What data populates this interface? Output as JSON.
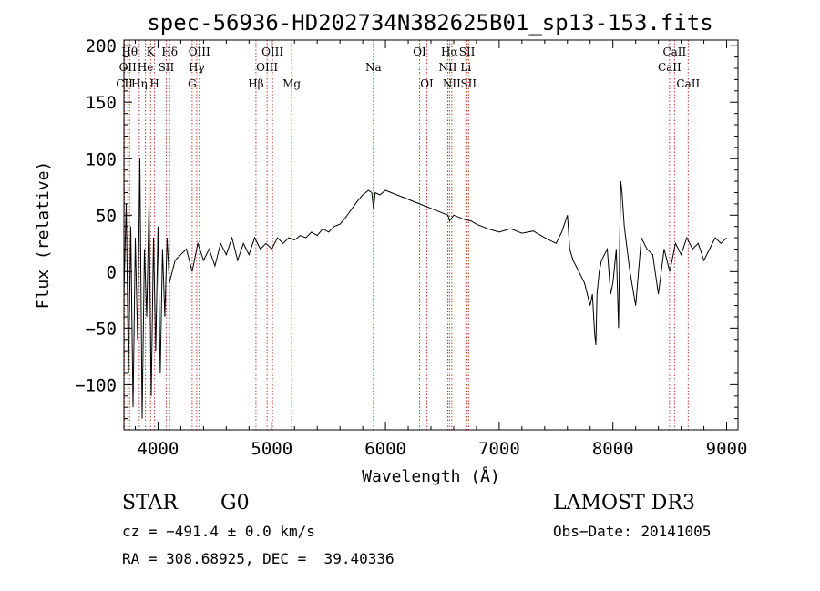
{
  "chart_data": {
    "type": "line",
    "title": "spec-56936-HD202734N382625B01_sp13-153.fits",
    "xlabel": "Wavelength (Å)",
    "ylabel": "Flux (relative)",
    "xlim": [
      3700,
      9100
    ],
    "ylim": [
      -140,
      205
    ],
    "xticks": [
      4000,
      5000,
      6000,
      7000,
      8000,
      9000
    ],
    "yticks": [
      -100,
      -50,
      0,
      50,
      100,
      150,
      200
    ],
    "ytick_labels": [
      "−100",
      "−50",
      "0",
      "50",
      "100",
      "150",
      "200"
    ],
    "series": [
      {
        "name": "flux",
        "x": [
          3700,
          3720,
          3740,
          3760,
          3780,
          3800,
          3820,
          3840,
          3860,
          3880,
          3900,
          3920,
          3940,
          3960,
          3980,
          4000,
          4020,
          4040,
          4060,
          4080,
          4100,
          4150,
          4200,
          4250,
          4300,
          4350,
          4400,
          4450,
          4500,
          4550,
          4600,
          4650,
          4700,
          4750,
          4800,
          4850,
          4900,
          4950,
          5000,
          5050,
          5100,
          5150,
          5200,
          5250,
          5300,
          5350,
          5400,
          5450,
          5500,
          5550,
          5600,
          5650,
          5700,
          5750,
          5800,
          5850,
          5880,
          5895,
          5910,
          5950,
          6000,
          6050,
          6100,
          6150,
          6200,
          6250,
          6300,
          6350,
          6400,
          6450,
          6500,
          6550,
          6563,
          6600,
          6650,
          6700,
          6750,
          6800,
          6900,
          7000,
          7100,
          7200,
          7300,
          7400,
          7500,
          7550,
          7600,
          7620,
          7650,
          7700,
          7750,
          7800,
          7820,
          7840,
          7850,
          7860,
          7880,
          7900,
          7950,
          7980,
          8000,
          8030,
          8050,
          8060,
          8070,
          8080,
          8100,
          8150,
          8200,
          8250,
          8300,
          8350,
          8400,
          8450,
          8500,
          8550,
          8600,
          8650,
          8700,
          8750,
          8800,
          8850,
          8900,
          8950,
          9000
        ],
        "y": [
          -20,
          60,
          -90,
          40,
          -120,
          30,
          -60,
          100,
          -130,
          20,
          -40,
          60,
          -110,
          30,
          -70,
          40,
          -90,
          20,
          -40,
          30,
          -10,
          10,
          15,
          20,
          0,
          25,
          10,
          20,
          5,
          25,
          15,
          30,
          10,
          25,
          15,
          30,
          20,
          25,
          20,
          30,
          25,
          30,
          28,
          32,
          30,
          35,
          32,
          38,
          35,
          40,
          42,
          48,
          55,
          62,
          68,
          72,
          70,
          55,
          70,
          68,
          72,
          70,
          68,
          66,
          64,
          62,
          60,
          58,
          56,
          54,
          52,
          50,
          45,
          50,
          48,
          46,
          45,
          42,
          38,
          35,
          38,
          34,
          36,
          30,
          25,
          35,
          50,
          20,
          10,
          0,
          -10,
          -30,
          -20,
          -55,
          -65,
          -20,
          0,
          10,
          20,
          -20,
          -10,
          20,
          -50,
          30,
          80,
          70,
          40,
          0,
          -30,
          30,
          20,
          15,
          -20,
          20,
          0,
          25,
          15,
          30,
          20,
          25,
          10,
          20,
          30,
          25,
          30
        ]
      }
    ],
    "spectral_lines": [
      {
        "w": 3750,
        "label": "Hθ",
        "row": 1
      },
      {
        "w": 3734,
        "label": "OII",
        "row": 2
      },
      {
        "w": 3705,
        "label": "CII",
        "row": 3
      },
      {
        "w": 3835,
        "label": "Hη",
        "row": 3
      },
      {
        "w": 3889,
        "label": "He",
        "row": 2
      },
      {
        "w": 3934,
        "label": "K",
        "row": 1
      },
      {
        "w": 3969,
        "label": "H",
        "row": 3
      },
      {
        "w": 4072,
        "label": "SII",
        "row": 2
      },
      {
        "w": 4102,
        "label": "Hδ",
        "row": 1
      },
      {
        "w": 4300,
        "label": "G",
        "row": 3
      },
      {
        "w": 4340,
        "label": "Hγ",
        "row": 2
      },
      {
        "w": 4363,
        "label": "OIII",
        "row": 1
      },
      {
        "w": 4861,
        "label": "Hβ",
        "row": 3
      },
      {
        "w": 4959,
        "label": "OIII",
        "row": 2
      },
      {
        "w": 5007,
        "label": "OIII",
        "row": 1
      },
      {
        "w": 5175,
        "label": "Mg",
        "row": 3
      },
      {
        "w": 5894,
        "label": "Na",
        "row": 2
      },
      {
        "w": 6300,
        "label": "OI",
        "row": 1
      },
      {
        "w": 6364,
        "label": "OI",
        "row": 3
      },
      {
        "w": 6548,
        "label": "NII",
        "row": 2
      },
      {
        "w": 6563,
        "label": "Hα",
        "row": 1
      },
      {
        "w": 6583,
        "label": "NII",
        "row": 3
      },
      {
        "w": 6707,
        "label": "Li",
        "row": 2
      },
      {
        "w": 6717,
        "label": "SII",
        "row": 1
      },
      {
        "w": 6731,
        "label": "SII",
        "row": 3
      },
      {
        "w": 8498,
        "label": "CaII",
        "row": 2
      },
      {
        "w": 8542,
        "label": "CaII",
        "row": 1
      },
      {
        "w": 8662,
        "label": "CaII",
        "row": 3
      }
    ]
  },
  "info": {
    "object_class": "STAR",
    "subclass": "G0",
    "survey": "LAMOST DR3",
    "cz": "cz = −491.4 ± 0.0 km/s",
    "obs_date": "Obs−Date: 20141005",
    "coords": "RA = 308.68925, DEC =  39.40336"
  },
  "colors": {
    "spectrum": "#000000",
    "line_marker": "#c0392b",
    "axis": "#000000"
  }
}
